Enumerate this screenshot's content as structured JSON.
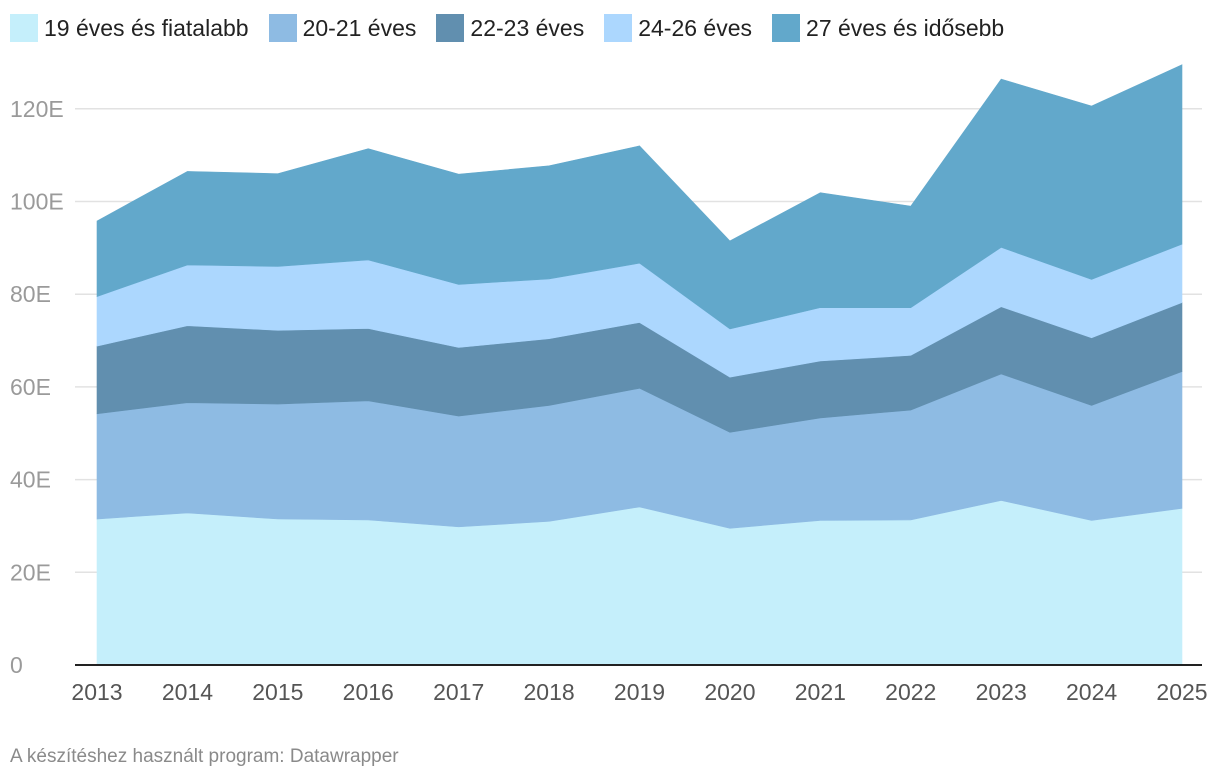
{
  "chart_data": {
    "type": "area",
    "stacked": true,
    "x": [
      "2013",
      "2014",
      "2015",
      "2016",
      "2017",
      "2018",
      "2019",
      "2020",
      "2021",
      "2022",
      "2023",
      "2024",
      "2025"
    ],
    "series": [
      {
        "name": "19 éves és fiatalabb",
        "color": "#c5effb",
        "values": [
          31.5,
          32.8,
          31.5,
          31.3,
          29.8,
          31.0,
          34.1,
          29.5,
          31.2,
          31.3,
          35.5,
          31.2,
          33.8
        ]
      },
      {
        "name": "20-21 éves",
        "color": "#8ebbe3",
        "values": [
          22.7,
          23.8,
          24.8,
          25.7,
          23.9,
          25.0,
          25.6,
          20.7,
          22.1,
          23.7,
          27.3,
          24.8,
          29.5
        ]
      },
      {
        "name": "22-23 éves",
        "color": "#618faf",
        "values": [
          14.6,
          16.6,
          15.9,
          15.6,
          14.8,
          14.4,
          14.2,
          11.9,
          12.3,
          11.8,
          14.5,
          14.6,
          14.9
        ]
      },
      {
        "name": "24-26 éves",
        "color": "#acd7fe",
        "values": [
          10.7,
          13.1,
          13.8,
          14.8,
          13.6,
          12.9,
          12.8,
          10.4,
          11.5,
          10.3,
          12.8,
          12.6,
          12.6
        ]
      },
      {
        "name": "27 éves és idősebb",
        "color": "#62a8cb",
        "values": [
          16.3,
          20.2,
          20.0,
          24.0,
          23.8,
          24.4,
          25.3,
          19.0,
          24.8,
          21.9,
          36.3,
          37.4,
          38.7
        ]
      }
    ],
    "y_ticks": [
      0,
      20,
      40,
      60,
      80,
      100,
      120
    ],
    "y_tick_labels": [
      "0",
      "20E",
      "40E",
      "60E",
      "80E",
      "100E",
      "120E"
    ],
    "ylim": [
      0,
      130
    ],
    "grid": true,
    "legend_position": "top-left"
  },
  "footer": {
    "credit": "A készítéshez használt program: Datawrapper"
  }
}
